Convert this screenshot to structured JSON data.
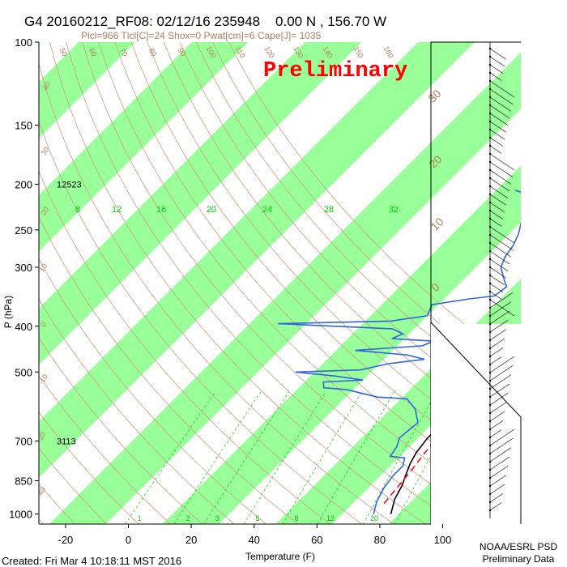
{
  "header": {
    "title": "G4 20160212_RF08: 02/12/16 235948    0.00 N , 156.70 W",
    "indices": "Plcl=966 Tlcl[C]=24 Shox=0 Pwat[cm]=6 Cape[J]= 1035"
  },
  "watermark": "Preliminary",
  "footer": {
    "created": "Created: Fri Mar  4 10:18:11 MST 2016",
    "org_line1": "NOAA/ESRL PSD",
    "org_line2": "Preliminary Data"
  },
  "colors": {
    "green_band": "#99ff99",
    "temperature": "#000000",
    "dewpoint": "#3366dd",
    "parcel": "#ff0000",
    "dry_adiabat": "#c8a080",
    "mixing_ratio": "#00cc00",
    "watermark": "#ff0000",
    "tan_label": "#b08060"
  },
  "chart_data": {
    "type": "line",
    "subtype": "skew-T log-P sounding",
    "xlabel": "Temperature (F)",
    "ylabel": "P (hPa)",
    "x_ticks": [
      -20,
      0,
      20,
      40,
      60,
      80,
      100
    ],
    "y_ticks": [
      100,
      150,
      200,
      250,
      300,
      400,
      500,
      700,
      850,
      1000
    ],
    "xlim": [
      -29,
      109
    ],
    "ylim": [
      1050,
      100
    ],
    "y_scale": "log",
    "height_labels": [
      {
        "p": 200,
        "text": "12523"
      },
      {
        "p": 700,
        "text": "3113"
      }
    ],
    "mixing_ratio_labels_top": [
      "8",
      "12",
      "16",
      "20",
      "24",
      "28",
      "32"
    ],
    "mixing_ratio_labels_bottom": [
      "1",
      "2",
      "3",
      "5",
      "8",
      "12",
      "20"
    ],
    "isotherm_labels_right": [
      "30",
      "20",
      "10",
      "0",
      "-10",
      "-20",
      "-30"
    ],
    "dry_adiabat_labels_left": [
      "40",
      "30",
      "20",
      "10",
      "0",
      "-10",
      "20",
      "40"
    ],
    "dry_adiabat_labels_top": [
      "50",
      "60",
      "70",
      "80",
      "90",
      "100",
      "110",
      "120",
      "130",
      "140",
      "150",
      "160"
    ],
    "series": [
      {
        "name": "temperature",
        "points": [
          [
            83.5,
            1000
          ],
          [
            80,
            930
          ],
          [
            78,
            870
          ],
          [
            76,
            830
          ],
          [
            73.5,
            780
          ],
          [
            72,
            740
          ],
          [
            71,
            690
          ],
          [
            71,
            640
          ],
          [
            70,
            600
          ],
          [
            69.5,
            560
          ],
          [
            70,
            530
          ],
          [
            70,
            500
          ],
          [
            70,
            460
          ],
          [
            69,
            430
          ],
          [
            66,
            400
          ],
          [
            62,
            370
          ],
          [
            56,
            320
          ],
          [
            52,
            280
          ],
          [
            48,
            250
          ],
          [
            44,
            220
          ],
          [
            40,
            200
          ],
          [
            35,
            187
          ]
        ]
      },
      {
        "name": "dewpoint",
        "points": [
          [
            78,
            1000
          ],
          [
            75,
            940
          ],
          [
            73,
            880
          ],
          [
            72,
            830
          ],
          [
            72,
            790
          ],
          [
            70,
            760
          ],
          [
            65,
            755
          ],
          [
            64,
            720
          ],
          [
            62,
            690
          ],
          [
            63,
            640
          ],
          [
            58,
            600
          ],
          [
            52,
            570
          ],
          [
            42,
            565
          ],
          [
            36,
            555
          ],
          [
            30,
            545
          ],
          [
            22,
            540
          ],
          [
            20,
            525
          ],
          [
            32,
            520
          ],
          [
            22,
            510
          ],
          [
            8,
            500
          ],
          [
            28,
            495
          ],
          [
            35,
            480
          ],
          [
            45,
            470
          ],
          [
            38,
            460
          ],
          [
            20,
            450
          ],
          [
            40,
            440
          ],
          [
            42,
            430
          ],
          [
            28,
            425
          ],
          [
            30,
            415
          ],
          [
            25,
            405
          ],
          [
            -13,
            395
          ],
          [
            22,
            390
          ],
          [
            32,
            380
          ],
          [
            30,
            360
          ],
          [
            40,
            350
          ],
          [
            47,
            345
          ],
          [
            48,
            330
          ],
          [
            44,
            315
          ],
          [
            40,
            300
          ],
          [
            38,
            285
          ],
          [
            37,
            270
          ],
          [
            35,
            255
          ],
          [
            32,
            240
          ],
          [
            28,
            220
          ],
          [
            25,
            210
          ],
          [
            20,
            206
          ]
        ]
      },
      {
        "name": "parcel",
        "points": [
          [
            78,
            950
          ],
          [
            76,
            800
          ],
          [
            74,
            700
          ],
          [
            71,
            600
          ],
          [
            69,
            500
          ],
          [
            67,
            430
          ],
          [
            63,
            350
          ],
          [
            57,
            300
          ],
          [
            50,
            250
          ],
          [
            44,
            210
          ],
          [
            38,
            190
          ]
        ]
      }
    ]
  }
}
